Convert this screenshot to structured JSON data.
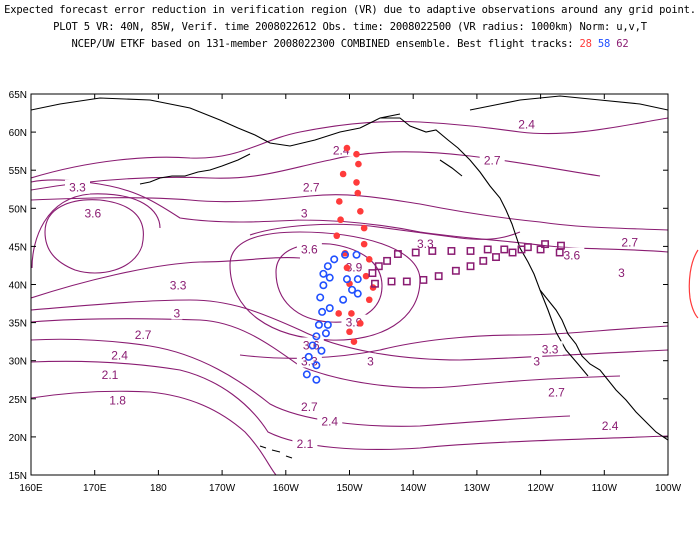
{
  "header": {
    "line1": "Expected forecast error reduction in verification region (VR) due to adaptive observations around any grid point.",
    "line2": "PLOT 5 VR: 40N, 85W, Verif. time 2008022612 Obs. time: 2008022500 (VR radius: 1000km) Norm: u,v,T",
    "line3_prefix": "NCEP/UW ETKF based on 131-member 2008022300 COMBINED ensemble.  Best flight tracks:",
    "track_red": "28",
    "track_blue": "58",
    "track_purple": "62"
  },
  "map": {
    "lon_range": [
      160,
      260
    ],
    "lat_range": [
      15,
      65
    ],
    "x_ticks": [
      {
        "lon": 160,
        "label": "160E"
      },
      {
        "lon": 170,
        "label": "170E"
      },
      {
        "lon": 180,
        "label": "180"
      },
      {
        "lon": 190,
        "label": "170W"
      },
      {
        "lon": 200,
        "label": "160W"
      },
      {
        "lon": 210,
        "label": "150W"
      },
      {
        "lon": 220,
        "label": "140W"
      },
      {
        "lon": 230,
        "label": "130W"
      },
      {
        "lon": 240,
        "label": "120W"
      },
      {
        "lon": 250,
        "label": "110W"
      },
      {
        "lon": 260,
        "label": "100W"
      }
    ],
    "y_ticks": [
      {
        "lat": 15,
        "label": "15N"
      },
      {
        "lat": 20,
        "label": "20N"
      },
      {
        "lat": 25,
        "label": "25N"
      },
      {
        "lat": 30,
        "label": "30N"
      },
      {
        "lat": 35,
        "label": "35N"
      },
      {
        "lat": 40,
        "label": "40N"
      },
      {
        "lat": 45,
        "label": "45N"
      },
      {
        "lat": 50,
        "label": "50N"
      },
      {
        "lat": 55,
        "label": "55N"
      },
      {
        "lat": 60,
        "label": "60N"
      },
      {
        "lat": 65,
        "label": "65N"
      }
    ],
    "colors": {
      "contour": "#8a1c72",
      "coast": "#000000",
      "red": "#ff3b3b",
      "blue": "#2050ff",
      "purple": "#8a1c72"
    },
    "contour_labels": [
      {
        "text": "2.4",
        "lon": 208.7,
        "lat": 57.6
      },
      {
        "text": "2.4",
        "lon": 237.8,
        "lat": 61.0
      },
      {
        "text": "2.7",
        "lon": 204.0,
        "lat": 52.7
      },
      {
        "text": "2.7",
        "lon": 232.4,
        "lat": 56.3
      },
      {
        "text": "3",
        "lon": 202.9,
        "lat": 49.3
      },
      {
        "text": "3.3",
        "lon": 167.3,
        "lat": 52.7
      },
      {
        "text": "3.6",
        "lon": 169.7,
        "lat": 49.3
      },
      {
        "text": "3.6",
        "lon": 203.7,
        "lat": 44.6
      },
      {
        "text": "3.9",
        "lon": 210.7,
        "lat": 42.2
      },
      {
        "text": "3.3",
        "lon": 221.9,
        "lat": 45.3
      },
      {
        "text": "3.6",
        "lon": 244.9,
        "lat": 43.8
      },
      {
        "text": "2.7",
        "lon": 254.0,
        "lat": 45.5
      },
      {
        "text": "3",
        "lon": 252.7,
        "lat": 41.5
      },
      {
        "text": "3.3",
        "lon": 183.1,
        "lat": 39.9
      },
      {
        "text": "3",
        "lon": 182.9,
        "lat": 36.2
      },
      {
        "text": "3.9",
        "lon": 210.7,
        "lat": 35.0
      },
      {
        "text": "2.7",
        "lon": 177.6,
        "lat": 33.4
      },
      {
        "text": "3.6",
        "lon": 204.0,
        "lat": 32.0
      },
      {
        "text": "2.4",
        "lon": 173.9,
        "lat": 30.7
      },
      {
        "text": "3.3",
        "lon": 203.7,
        "lat": 29.9
      },
      {
        "text": "3",
        "lon": 213.3,
        "lat": 29.9
      },
      {
        "text": "3.3",
        "lon": 241.5,
        "lat": 31.5
      },
      {
        "text": "3",
        "lon": 239.4,
        "lat": 29.9
      },
      {
        "text": "2.1",
        "lon": 172.4,
        "lat": 28.1
      },
      {
        "text": "2.7",
        "lon": 242.5,
        "lat": 25.8
      },
      {
        "text": "1.8",
        "lon": 173.6,
        "lat": 24.8
      },
      {
        "text": "2.7",
        "lon": 203.7,
        "lat": 23.9
      },
      {
        "text": "2.4",
        "lon": 206.9,
        "lat": 22.0
      },
      {
        "text": "2.4",
        "lon": 250.9,
        "lat": 21.4
      },
      {
        "text": "2.1",
        "lon": 203.0,
        "lat": 19.1
      }
    ],
    "track_red": [
      [
        209.6,
        57.9
      ],
      [
        211.1,
        57.1
      ],
      [
        211.4,
        55.8
      ],
      [
        209.0,
        54.5
      ],
      [
        211.1,
        53.4
      ],
      [
        211.3,
        52.0
      ],
      [
        208.4,
        50.9
      ],
      [
        211.7,
        49.6
      ],
      [
        208.6,
        48.5
      ],
      [
        212.3,
        47.4
      ],
      [
        208.0,
        46.4
      ],
      [
        212.3,
        45.3
      ],
      [
        209.3,
        44.1
      ],
      [
        213.1,
        43.3
      ],
      [
        209.6,
        42.2
      ],
      [
        212.6,
        41.1
      ],
      [
        210.0,
        40.1
      ],
      [
        213.7,
        39.6
      ],
      [
        213.1,
        38.0
      ],
      [
        210.3,
        36.2
      ],
      [
        211.7,
        34.9
      ],
      [
        208.3,
        36.2
      ],
      [
        210.0,
        33.8
      ],
      [
        210.7,
        32.5
      ]
    ],
    "track_blue": [
      [
        211.1,
        43.9
      ],
      [
        209.3,
        43.9
      ],
      [
        207.6,
        43.3
      ],
      [
        206.6,
        42.4
      ],
      [
        205.9,
        41.4
      ],
      [
        206.9,
        40.9
      ],
      [
        211.3,
        40.7
      ],
      [
        209.6,
        40.7
      ],
      [
        205.9,
        39.9
      ],
      [
        210.4,
        39.3
      ],
      [
        211.3,
        38.8
      ],
      [
        205.4,
        38.3
      ],
      [
        209.0,
        38.0
      ],
      [
        206.9,
        36.9
      ],
      [
        205.7,
        36.4
      ],
      [
        205.2,
        34.7
      ],
      [
        206.6,
        34.7
      ],
      [
        204.8,
        33.2
      ],
      [
        206.3,
        33.6
      ],
      [
        204.2,
        32.0
      ],
      [
        205.6,
        31.3
      ],
      [
        203.6,
        30.5
      ],
      [
        204.8,
        29.4
      ],
      [
        203.3,
        28.2
      ],
      [
        204.8,
        27.5
      ]
    ],
    "track_purple": [
      [
        243.2,
        45.1
      ],
      [
        240.7,
        45.3
      ],
      [
        243.0,
        44.2
      ],
      [
        240.0,
        44.6
      ],
      [
        237.0,
        44.6
      ],
      [
        234.3,
        44.6
      ],
      [
        231.7,
        44.6
      ],
      [
        229.0,
        44.4
      ],
      [
        226.0,
        44.4
      ],
      [
        223.0,
        44.4
      ],
      [
        220.4,
        44.2
      ],
      [
        217.6,
        44.0
      ],
      [
        215.9,
        43.1
      ],
      [
        214.6,
        42.4
      ],
      [
        213.6,
        41.5
      ],
      [
        214.0,
        40.1
      ],
      [
        216.6,
        40.4
      ],
      [
        219.0,
        40.4
      ],
      [
        221.6,
        40.6
      ],
      [
        224.0,
        41.1
      ],
      [
        226.7,
        41.8
      ],
      [
        229.0,
        42.4
      ],
      [
        231.0,
        43.1
      ],
      [
        233.0,
        43.6
      ],
      [
        235.6,
        44.2
      ],
      [
        238.0,
        44.9
      ]
    ]
  }
}
